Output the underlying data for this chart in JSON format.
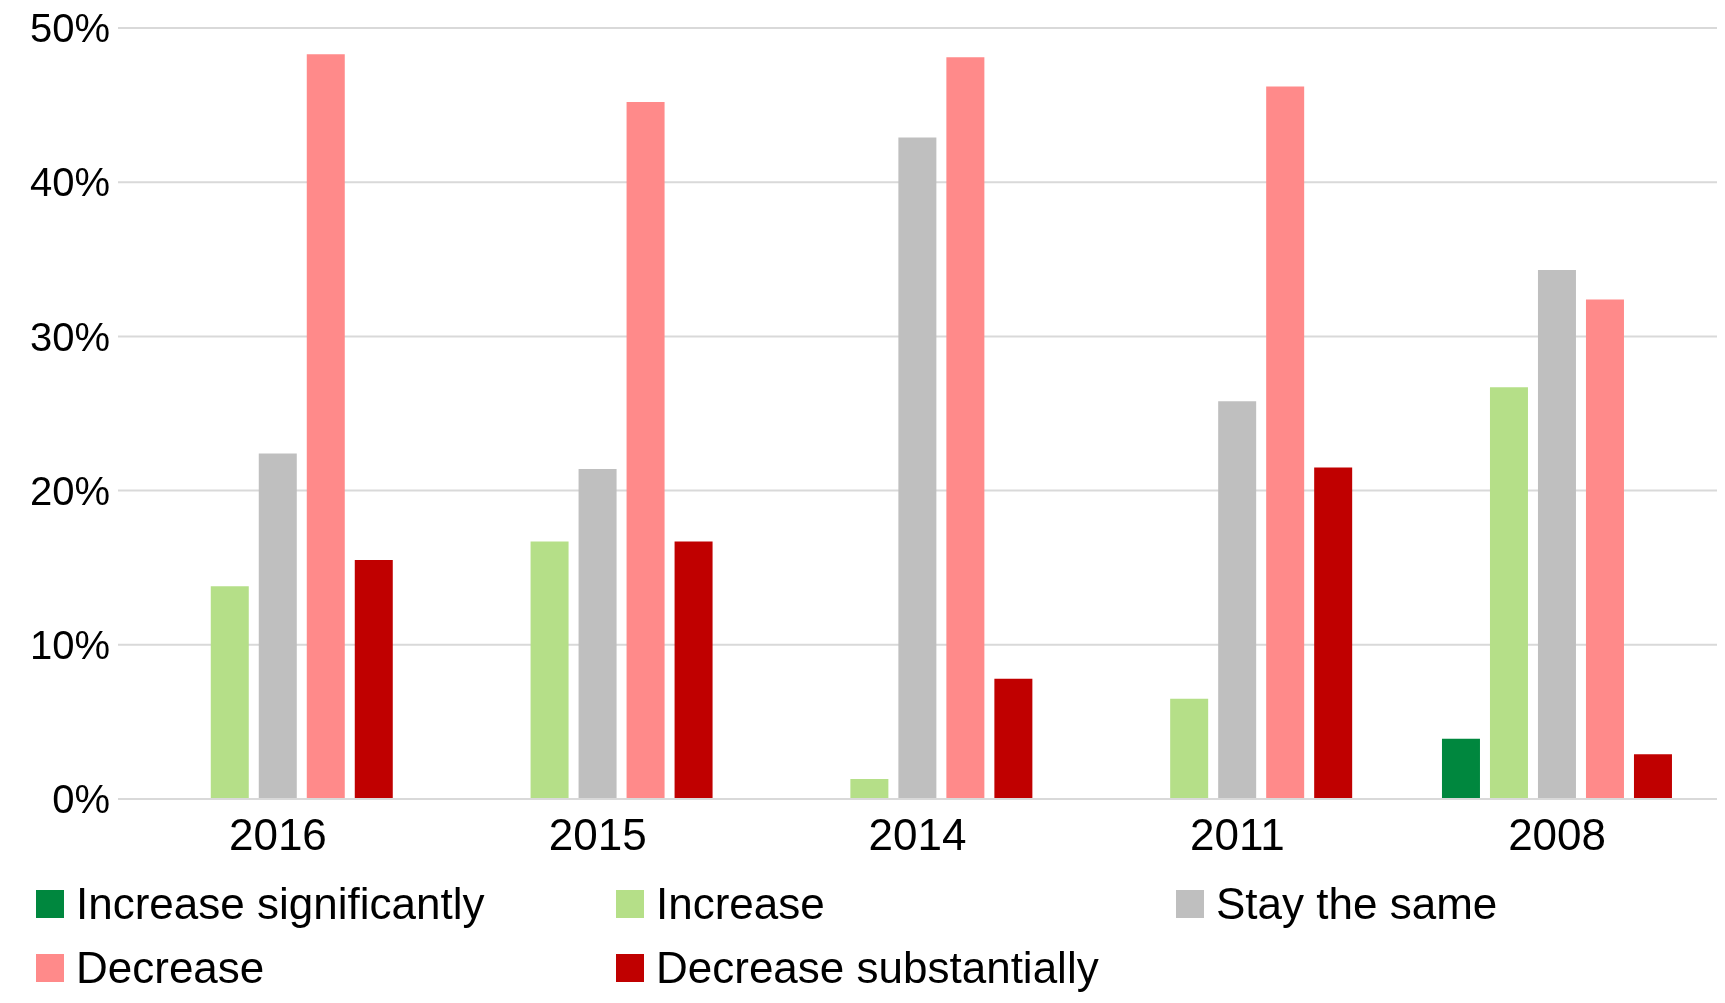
{
  "chart_data": {
    "type": "bar",
    "categories": [
      "2016",
      "2015",
      "2014",
      "2011",
      "2008"
    ],
    "series": [
      {
        "name": "Increase significantly",
        "color": "#00873e",
        "values": [
          null,
          null,
          null,
          null,
          3.9
        ]
      },
      {
        "name": "Increase",
        "color": "#b5df88",
        "values": [
          13.8,
          16.7,
          1.3,
          6.5,
          26.7
        ]
      },
      {
        "name": "Stay the same",
        "color": "#bfbfbf",
        "values": [
          22.4,
          21.4,
          42.9,
          25.8,
          34.3
        ]
      },
      {
        "name": "Decrease",
        "color": "#ff8a8a",
        "values": [
          48.3,
          45.2,
          48.1,
          46.2,
          32.4
        ]
      },
      {
        "name": "Decrease substantially",
        "color": "#c00000",
        "values": [
          15.5,
          16.7,
          7.8,
          21.5,
          2.9
        ]
      }
    ],
    "ylim": [
      0,
      50
    ],
    "yticks": [
      {
        "value": 0,
        "label": "0%"
      },
      {
        "value": 10,
        "label": "10%"
      },
      {
        "value": 20,
        "label": "20%"
      },
      {
        "value": 30,
        "label": "30%"
      },
      {
        "value": 40,
        "label": "40%"
      },
      {
        "value": 50,
        "label": "50%"
      }
    ],
    "grid": "y",
    "legend": "bottom"
  }
}
